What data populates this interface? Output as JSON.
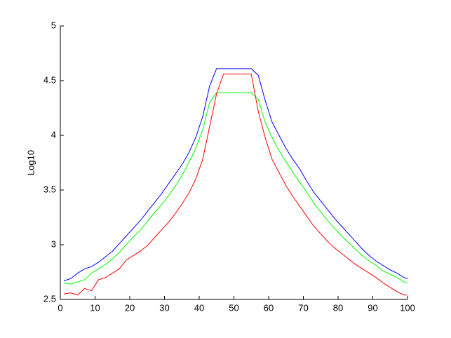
{
  "chart_data": {
    "type": "line",
    "ylabel": "Log10",
    "x": [
      1,
      3,
      5,
      7,
      9,
      11,
      13,
      15,
      17,
      19,
      21,
      23,
      25,
      27,
      29,
      31,
      33,
      35,
      37,
      39,
      41,
      43,
      45,
      47,
      49,
      51,
      53,
      55,
      57,
      59,
      61,
      63,
      65,
      67,
      69,
      71,
      73,
      75,
      77,
      79,
      81,
      83,
      85,
      87,
      89,
      91,
      93,
      95,
      97,
      99,
      100
    ],
    "series": [
      {
        "color": "#0000ff",
        "values": [
          2.67,
          2.69,
          2.74,
          2.78,
          2.8,
          2.84,
          2.89,
          2.94,
          3.01,
          3.08,
          3.15,
          3.22,
          3.3,
          3.38,
          3.46,
          3.55,
          3.64,
          3.73,
          3.84,
          3.98,
          4.17,
          4.45,
          4.61,
          4.61,
          4.61,
          4.61,
          4.61,
          4.61,
          4.55,
          4.32,
          4.12,
          4.0,
          3.88,
          3.78,
          3.69,
          3.58,
          3.48,
          3.4,
          3.32,
          3.24,
          3.17,
          3.1,
          3.03,
          2.96,
          2.9,
          2.85,
          2.81,
          2.77,
          2.74,
          2.7,
          2.69
        ]
      },
      {
        "color": "#00ff00",
        "values": [
          2.65,
          2.64,
          2.66,
          2.68,
          2.74,
          2.78,
          2.82,
          2.87,
          2.93,
          3.0,
          3.07,
          3.13,
          3.21,
          3.29,
          3.36,
          3.44,
          3.53,
          3.63,
          3.75,
          3.88,
          4.05,
          4.3,
          4.39,
          4.39,
          4.39,
          4.39,
          4.39,
          4.39,
          4.33,
          4.12,
          3.98,
          3.86,
          3.76,
          3.66,
          3.57,
          3.48,
          3.38,
          3.3,
          3.22,
          3.15,
          3.08,
          3.02,
          2.96,
          2.9,
          2.85,
          2.81,
          2.76,
          2.73,
          2.7,
          2.66,
          2.65
        ]
      },
      {
        "color": "#ff0000",
        "values": [
          2.55,
          2.56,
          2.54,
          2.6,
          2.58,
          2.68,
          2.7,
          2.74,
          2.78,
          2.86,
          2.9,
          2.94,
          2.99,
          3.06,
          3.13,
          3.2,
          3.28,
          3.37,
          3.47,
          3.6,
          3.78,
          4.08,
          4.38,
          4.56,
          4.56,
          4.56,
          4.56,
          4.56,
          4.22,
          3.98,
          3.78,
          3.66,
          3.54,
          3.44,
          3.35,
          3.26,
          3.17,
          3.1,
          3.03,
          2.97,
          2.92,
          2.87,
          2.82,
          2.78,
          2.74,
          2.7,
          2.65,
          2.61,
          2.57,
          2.54,
          2.54
        ]
      }
    ],
    "xlim": [
      0,
      100
    ],
    "xticks": [
      0,
      10,
      20,
      30,
      40,
      50,
      60,
      70,
      80,
      90,
      100
    ],
    "ylim": [
      2.5,
      5
    ],
    "yticks": [
      2.5,
      3,
      3.5,
      4,
      4.5,
      5
    ],
    "grid": false
  }
}
